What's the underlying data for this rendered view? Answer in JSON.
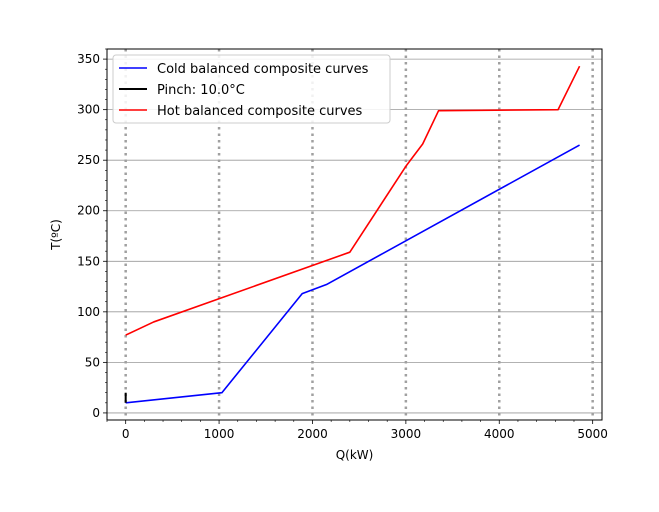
{
  "chart_data": {
    "type": "line",
    "title": "",
    "xlabel": "Q(kW)",
    "ylabel": "T(ºC)",
    "xlim": [
      -200,
      5100
    ],
    "ylim": [
      -7,
      360
    ],
    "xticks": [
      0,
      1000,
      2000,
      3000,
      4000,
      5000
    ],
    "yticks": [
      0,
      50,
      100,
      150,
      200,
      250,
      300,
      350
    ],
    "grid": {
      "horizontal": true,
      "vertical_dotted_at": [
        0,
        1000,
        2000,
        3000,
        4000,
        5000
      ]
    },
    "legend_position": "top-left",
    "series": [
      {
        "name": "Cold balanced composite curves",
        "color": "#0000ff",
        "x": [
          0,
          1030,
          1890,
          2150,
          4860
        ],
        "y": [
          10,
          20,
          118,
          127,
          265
        ]
      },
      {
        "name": "Pinch: 10.0°C",
        "color": "#000000",
        "x": [
          0,
          0
        ],
        "y": [
          10,
          20
        ]
      },
      {
        "name": "Hot balanced composite curves",
        "color": "#ff0000",
        "x": [
          0,
          300,
          2400,
          3000,
          3180,
          3350,
          4630,
          4860
        ],
        "y": [
          77,
          90,
          159,
          244,
          266,
          299,
          300,
          343
        ]
      }
    ]
  }
}
